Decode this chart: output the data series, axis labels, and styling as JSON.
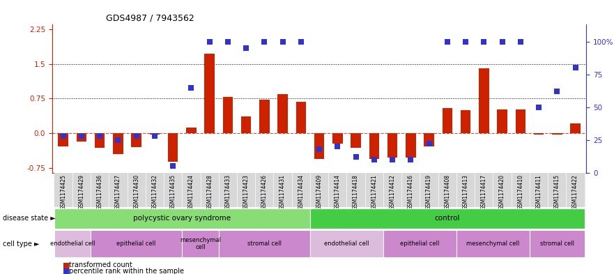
{
  "title": "GDS4987 / 7943562",
  "samples": [
    "GSM1174425",
    "GSM1174429",
    "GSM1174436",
    "GSM1174427",
    "GSM1174430",
    "GSM1174432",
    "GSM1174435",
    "GSM1174424",
    "GSM1174428",
    "GSM1174433",
    "GSM1174423",
    "GSM1174426",
    "GSM1174431",
    "GSM1174434",
    "GSM1174409",
    "GSM1174414",
    "GSM1174418",
    "GSM1174421",
    "GSM1174412",
    "GSM1174416",
    "GSM1174419",
    "GSM1174408",
    "GSM1174413",
    "GSM1174417",
    "GSM1174420",
    "GSM1174410",
    "GSM1174411",
    "GSM1174415",
    "GSM1174422"
  ],
  "red_values": [
    -0.28,
    -0.18,
    -0.32,
    -0.45,
    -0.3,
    -0.02,
    -0.62,
    0.12,
    1.72,
    0.78,
    0.36,
    0.72,
    0.85,
    0.68,
    -0.55,
    -0.22,
    -0.32,
    -0.55,
    -0.52,
    -0.52,
    -0.28,
    0.55,
    0.5,
    1.4,
    0.52,
    0.52,
    -0.02,
    -0.02,
    0.22
  ],
  "blue_values": [
    28,
    28,
    28,
    25,
    28,
    28,
    5,
    65,
    100,
    100,
    95,
    100,
    100,
    100,
    18,
    20,
    12,
    10,
    10,
    10,
    22,
    100,
    100,
    100,
    100,
    100,
    50,
    62,
    80
  ],
  "ylim_left": [
    -0.85,
    2.35
  ],
  "ylim_right": [
    0,
    113
  ],
  "yticks_left": [
    -0.75,
    0.0,
    0.75,
    1.5,
    2.25
  ],
  "yticks_right": [
    0,
    25,
    50,
    75,
    100
  ],
  "hlines": [
    0.75,
    1.5
  ],
  "bar_color": "#cc2200",
  "blue_color": "#3333cc",
  "pcos_color": "#88dd77",
  "ctrl_color": "#44cc44",
  "endothelial_color_pcos": "#ddbbdd",
  "cell_colors_pcos": [
    "#ddbbdd",
    "#cc88cc",
    "#cc88cc",
    "#cc88cc"
  ],
  "cell_colors_ctrl": [
    "#ddbbdd",
    "#cc88cc",
    "#cc88cc",
    "#cc88cc"
  ],
  "cell_type_groups_pcos": [
    {
      "label": "endothelial cell",
      "start": 0,
      "end": 2
    },
    {
      "label": "epithelial cell",
      "start": 2,
      "end": 7
    },
    {
      "label": "mesenchymal\ncell",
      "start": 7,
      "end": 9
    },
    {
      "label": "stromal cell",
      "start": 9,
      "end": 14
    }
  ],
  "cell_type_groups_ctrl": [
    {
      "label": "endothelial cell",
      "start": 14,
      "end": 18
    },
    {
      "label": "epithelial cell",
      "start": 18,
      "end": 22
    },
    {
      "label": "mesenchymal cell",
      "start": 22,
      "end": 26
    },
    {
      "label": "stromal cell",
      "start": 26,
      "end": 29
    }
  ],
  "pcos_range": [
    0,
    14
  ],
  "ctrl_range": [
    14,
    29
  ],
  "bar_width": 0.55,
  "blue_marker_size": 28
}
